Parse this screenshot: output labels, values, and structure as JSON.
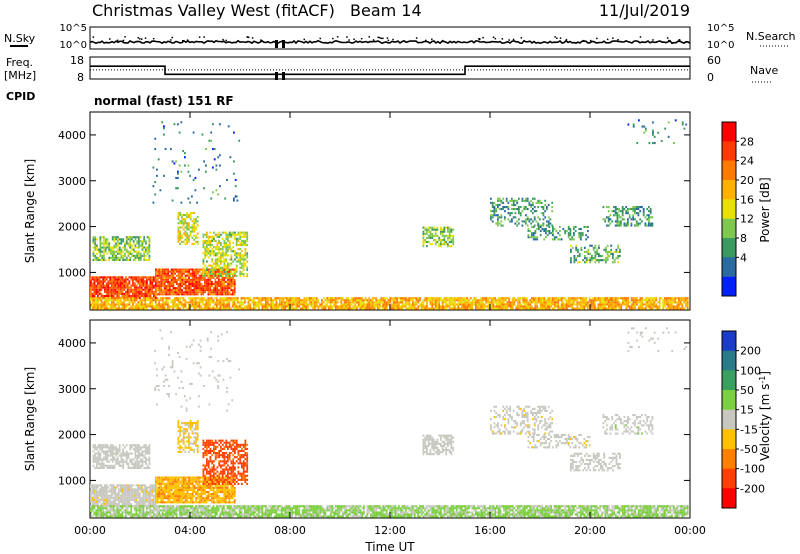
{
  "header": {
    "station": "Christmas Valley West (fitACF)",
    "beam": "Beam 14",
    "date": "11/Jul/2019"
  },
  "panels": {
    "nsky_label": "N.Sky",
    "nsearch_label": "N.Search",
    "freq_label_1": "Freq.",
    "freq_label_2": "[MHz]",
    "nave_label": "Nave",
    "cpid_label": "CPID",
    "cpid_text": "normal (fast) 151 RF",
    "noise_ticks_left": [
      "10^5",
      "10^0"
    ],
    "noise_ticks_right": [
      "10^5",
      "10^0"
    ],
    "freq_ticks": [
      "18",
      "8"
    ],
    "nave_ticks": [
      "60",
      "0"
    ]
  },
  "colorbars": {
    "power_label": "Power [dB]",
    "power_ticks": [
      "28",
      "24",
      "20",
      "16",
      "12",
      "8",
      "4"
    ],
    "power_colors": [
      "#ff0000",
      "#ff3a00",
      "#ff7a00",
      "#ffb000",
      "#e8e000",
      "#7ec850",
      "#3a9a60",
      "#2a6aa0",
      "#0020ff"
    ],
    "velocity_label": "Velocity [m s",
    "velocity_label_sup": "-1",
    "velocity_label_end": "]",
    "velocity_ticks": [
      "200",
      "100",
      "50",
      "15",
      "-15",
      "-50",
      "-100",
      "-200"
    ],
    "velocity_colors": [
      "#1a3cc8",
      "#2a7a8a",
      "#3aa060",
      "#7cd040",
      "#c8c8c0",
      "#ffc000",
      "#ff8000",
      "#ff4000",
      "#ff0000"
    ]
  },
  "chart_data": {
    "type": "heatmap",
    "title": "Christmas Valley West (fitACF) Beam 14 11/Jul/2019",
    "xlabel": "Time UT",
    "ylabel": "Slant Range [km]",
    "x_ticks": [
      "00:00",
      "04:00",
      "08:00",
      "12:00",
      "16:00",
      "20:00",
      "00:00"
    ],
    "y_ticks": [
      "1000",
      "2000",
      "3000",
      "4000"
    ],
    "xlim_hours": [
      0,
      24
    ],
    "ylim_km": [
      180,
      4500
    ],
    "frequency_mhz": [
      {
        "start_h": 0.0,
        "end_h": 3.0,
        "value": 14
      },
      {
        "start_h": 3.0,
        "end_h": 15.0,
        "value": 9.5
      },
      {
        "start_h": 15.0,
        "end_h": 24.0,
        "value": 14
      }
    ],
    "nave_level": 25,
    "regions": [
      {
        "t0": 0.0,
        "t1": 2.6,
        "r0": 420,
        "r1": 900,
        "power_db": 28,
        "velocity": -5,
        "density": 0.9
      },
      {
        "t0": 0.1,
        "t1": 2.4,
        "r0": 1250,
        "r1": 1750,
        "power_db": 12,
        "velocity": 0,
        "density": 0.7
      },
      {
        "t0": 2.6,
        "t1": 5.8,
        "r0": 500,
        "r1": 1050,
        "power_db": 26,
        "velocity": -80,
        "density": 0.9
      },
      {
        "t0": 3.5,
        "t1": 4.3,
        "r0": 1600,
        "r1": 2300,
        "power_db": 16,
        "velocity": -40,
        "density": 0.6
      },
      {
        "t0": 4.5,
        "t1": 6.3,
        "r0": 900,
        "r1": 1850,
        "power_db": 14,
        "velocity": -180,
        "density": 0.6
      },
      {
        "t0": 0.0,
        "t1": 24.0,
        "r0": 190,
        "r1": 420,
        "power_db": 20,
        "velocity": 40,
        "density": 0.85
      },
      {
        "t0": 13.3,
        "t1": 14.5,
        "r0": 1550,
        "r1": 2000,
        "power_db": 12,
        "velocity": 0,
        "density": 0.6
      },
      {
        "t0": 16.0,
        "t1": 18.5,
        "r0": 2000,
        "r1": 2600,
        "power_db": 8,
        "velocity": -10,
        "density": 0.35
      },
      {
        "t0": 17.5,
        "t1": 20.0,
        "r0": 1700,
        "r1": 2000,
        "power_db": 8,
        "velocity": -5,
        "density": 0.4
      },
      {
        "t0": 19.2,
        "t1": 21.2,
        "r0": 1200,
        "r1": 1600,
        "power_db": 10,
        "velocity": 0,
        "density": 0.45
      },
      {
        "t0": 20.5,
        "t1": 22.5,
        "r0": 2000,
        "r1": 2450,
        "power_db": 8,
        "velocity": 5,
        "density": 0.4
      },
      {
        "t0": 21.5,
        "t1": 24.0,
        "r0": 3800,
        "r1": 4300,
        "power_db": 6,
        "velocity": 0,
        "density": 0.06
      },
      {
        "t0": 2.5,
        "t1": 6.0,
        "r0": 2500,
        "r1": 4300,
        "power_db": 6,
        "velocity": 0,
        "density": 0.04
      }
    ]
  }
}
